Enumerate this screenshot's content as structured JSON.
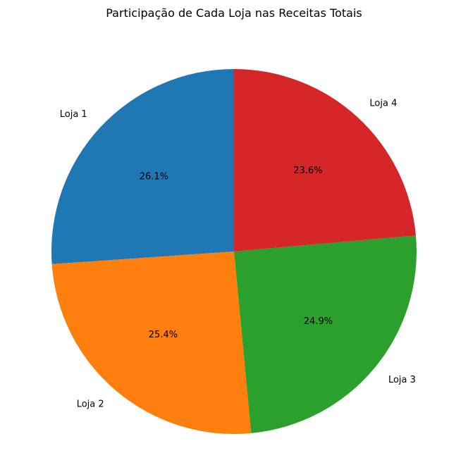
{
  "chart_data": {
    "type": "pie",
    "title": "Participação de Cada Loja nas Receitas Totais",
    "categories": [
      "Loja 1",
      "Loja 2",
      "Loja 3",
      "Loja 4"
    ],
    "values": [
      26.1,
      25.4,
      24.9,
      23.6
    ],
    "value_labels": [
      "26.1%",
      "25.4%",
      "24.9%",
      "23.6%"
    ],
    "colors": [
      "#1f77b4",
      "#ff7f0e",
      "#2ca02c",
      "#d62728"
    ],
    "start_angle_deg": 90,
    "direction": "counterclockwise"
  }
}
